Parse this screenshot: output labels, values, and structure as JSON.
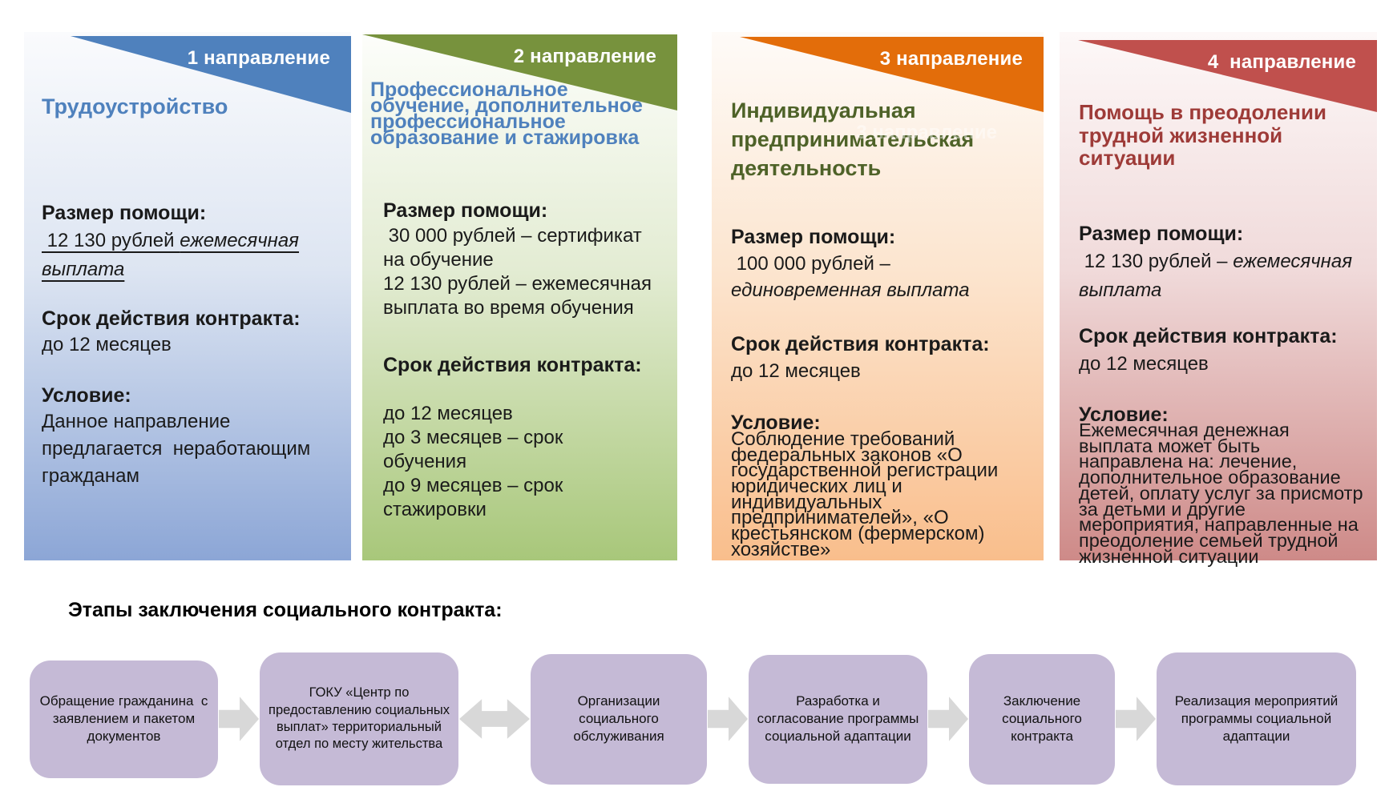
{
  "cards": [
    {
      "banner_label": "1 направление",
      "title": "Трудоустройство",
      "help_label": "Размер помощи:",
      "help_value_normal": " 12 130 рублей ",
      "help_value_italic": "ежемесячная выплата",
      "term_label": "Срок действия контракта:",
      "term_text": "до 12 месяцев",
      "condition_label": "Условие:",
      "condition_text": "Данное направление предлагается  неработающим гражданам",
      "colors": {
        "banner": "#4f81bd",
        "title": "#4f81bd",
        "card_bottom": "#8ca6d6"
      }
    },
    {
      "banner_label": "2 направление",
      "title": "Профессиональное обучение, дополнительное профессиональное образование и стажировка",
      "help_label": "Размер помощи:",
      "help_line1": " 30 000 рублей – сертификат на обучение",
      "help_line2": "12 130 рублей – ежемесячная выплата во время обучения",
      "term_label": "Срок действия контракта:",
      "term_line1": "до 12 месяцев",
      "term_line2": "до 3 месяцев – срок обучения",
      "term_line3": "до 9 месяцев – срок стажировки",
      "colors": {
        "banner": "#77923d",
        "title": "#4f81bd",
        "card_bottom": "#a8c77a"
      }
    },
    {
      "banner_label": "3 направление",
      "ghost_label": "3 направление",
      "title": "Индивидуальная предпринимательская деятельность",
      "help_label": "Размер помощи:",
      "help_value_normal": " 100 000 рублей – ",
      "help_value_italic": "единовременная выплата",
      "term_label": "Срок действия контракта:",
      "term_text": "до 12 месяцев",
      "condition_label": "Условие:",
      "condition_text": "Соблюдение требований федеральных законов «О государственной регистрации юридических лиц и индивидуальных предпринимателей», «О крестьянском (фермерском) хозяйстве»",
      "colors": {
        "banner": "#e36d0a",
        "title": "#4e6228",
        "card_bottom": "#f9be8c"
      }
    },
    {
      "banner_label": "4  направление",
      "title": "Помощь в преодолении трудной жизненной ситуации",
      "help_label": "Размер помощи:",
      "help_value_normal": " 12 130 рублей – ",
      "help_value_italic": "ежемесячная выплата",
      "term_label": "Срок действия контракта:",
      "term_text": "до 12 месяцев",
      "condition_label": "Условие:",
      "condition_text": "Ежемесячная денежная выплата может быть направлена на: лечение, дополнительное образование детей, оплату услуг за присмотр за детьми и другие мероприятия, направленные на преодоление семьей трудной жизненной ситуации",
      "colors": {
        "banner": "#c0504d",
        "title": "#9e3b38",
        "card_bottom": "#ce8a88"
      }
    }
  ],
  "stages": {
    "heading": "Этапы заключения социального контракта:",
    "steps": [
      "Обращение гражданина  с заявлением и пакетом документов",
      "ГОКУ «Центр по предоставлению социальных выплат» территориальный отдел по месту жительства",
      "Организации социального обслуживания",
      "Разработка и согласование программы социальной адаптации",
      "Заключение социального контракта",
      "Реализация мероприятий программы социальной адаптации"
    ],
    "box_color": "#c5bad6",
    "arrow_color": "#d8d8d8"
  }
}
